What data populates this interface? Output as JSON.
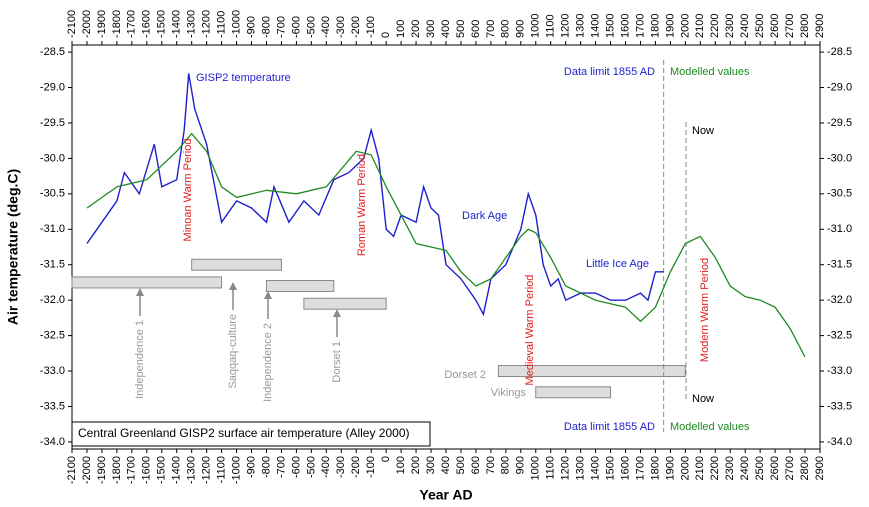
{
  "chart_data": {
    "type": "line",
    "title": "Central Greenland GISP2 surface air temperature (Alley 2000)",
    "x_label": "Year AD",
    "y_label": "Air temperature (deg.C)",
    "xlim": [
      -2100,
      2900
    ],
    "ylim": [
      -34.1,
      -28.4
    ],
    "xticks": [
      -2100,
      -2000,
      -1900,
      -1800,
      -1700,
      -1600,
      -1500,
      -1400,
      -1300,
      -1200,
      -1100,
      -1000,
      -900,
      -800,
      -700,
      -600,
      -500,
      -400,
      -300,
      -200,
      -100,
      0,
      100,
      200,
      300,
      400,
      500,
      600,
      700,
      800,
      900,
      1000,
      1100,
      1200,
      1300,
      1400,
      1500,
      1600,
      1700,
      1800,
      1900,
      2000,
      2100,
      2200,
      2300,
      2400,
      2500,
      2600,
      2700,
      2800,
      2900
    ],
    "yticks": [
      -28.5,
      {
        "value": -29,
        "label": "-29.0"
      },
      -29.5,
      {
        "value": -30,
        "label": "-30.0"
      },
      -30.5,
      {
        "value": -31,
        "label": "-31.0"
      },
      -31.5,
      {
        "value": -32,
        "label": "-32.0"
      },
      -32.5,
      {
        "value": -33,
        "label": "-33.0"
      },
      -33.5,
      {
        "value": -34,
        "label": "-34.0"
      }
    ],
    "series": [
      {
        "name": "GISP2 temperature",
        "color": "#1f1fcf",
        "x": [
          -2000,
          -1900,
          -1800,
          -1750,
          -1650,
          -1550,
          -1500,
          -1400,
          -1350,
          -1320,
          -1280,
          -1200,
          -1100,
          -1000,
          -900,
          -800,
          -750,
          -650,
          -550,
          -450,
          -350,
          -250,
          -150,
          -100,
          -50,
          0,
          50,
          100,
          200,
          250,
          300,
          350,
          400,
          500,
          600,
          650,
          700,
          800,
          900,
          950,
          1000,
          1050,
          1100,
          1150,
          1200,
          1300,
          1400,
          1500,
          1600,
          1700,
          1750,
          1800,
          1855
        ],
        "values": [
          -31.2,
          -30.9,
          -30.6,
          -30.2,
          -30.5,
          -29.8,
          -30.4,
          -30.3,
          -29.6,
          -28.8,
          -29.3,
          -29.8,
          -30.9,
          -30.6,
          -30.7,
          -30.9,
          -30.4,
          -30.9,
          -30.6,
          -30.8,
          -30.3,
          -30.2,
          -30.0,
          -29.6,
          -30.0,
          -31.0,
          -31.1,
          -30.8,
          -30.9,
          -30.4,
          -30.7,
          -30.8,
          -31.5,
          -31.7,
          -32.0,
          -32.2,
          -31.7,
          -31.5,
          -31.0,
          -30.5,
          -30.8,
          -31.5,
          -31.8,
          -31.7,
          -32.0,
          -31.9,
          -31.9,
          -32.0,
          -32.0,
          -31.9,
          -32.0,
          -31.6,
          -31.6
        ]
      },
      {
        "name": "Modelled values",
        "color": "#1f8a1f",
        "x": [
          -2000,
          -1800,
          -1600,
          -1400,
          -1300,
          -1200,
          -1100,
          -1000,
          -800,
          -600,
          -400,
          -200,
          -100,
          0,
          100,
          200,
          300,
          400,
          500,
          600,
          700,
          800,
          900,
          950,
          1000,
          1100,
          1200,
          1300,
          1400,
          1600,
          1700,
          1800,
          1900,
          2000,
          2100,
          2200,
          2300,
          2400,
          2500,
          2600,
          2700,
          2800
        ],
        "values": [
          -30.7,
          -30.4,
          -30.3,
          -29.9,
          -29.65,
          -29.9,
          -30.4,
          -30.55,
          -30.45,
          -30.5,
          -30.4,
          -29.9,
          -29.95,
          -30.4,
          -30.8,
          -31.2,
          -31.25,
          -31.3,
          -31.6,
          -31.8,
          -31.7,
          -31.4,
          -31.1,
          -31.0,
          -31.05,
          -31.4,
          -31.8,
          -31.9,
          -32.0,
          -32.1,
          -32.3,
          -32.1,
          -31.6,
          -31.2,
          -31.1,
          -31.4,
          -31.8,
          -31.95,
          -32.0,
          -32.1,
          -32.4,
          -32.8
        ]
      }
    ],
    "bars": [
      {
        "start": -2100,
        "end": -1100,
        "y": -31.75
      },
      {
        "start": -1300,
        "end": -700,
        "y": -31.5
      },
      {
        "start": -800,
        "end": -350,
        "y": -31.8
      },
      {
        "start": -550,
        "end": 0,
        "y": -32.05
      },
      {
        "start": 750,
        "end": 2000,
        "y": -33.0
      },
      {
        "start": 1000,
        "end": 1500,
        "y": -33.3
      }
    ],
    "annotations": [
      "GISP2 temperature",
      "Dark Age",
      "Little Ice Age",
      "Data limit 1855 AD",
      "Modelled values",
      "Now",
      "Data limit 1855 AD",
      "Modelled values",
      "Now",
      "Dorset 2",
      "Vikings"
    ],
    "periods": [
      "Minoan Warm Period",
      "Roman Warm Period",
      "Medieval Warm Period",
      "Modern Warm Period"
    ],
    "cultures": [
      "Independence 1",
      "Saqqaq-culture",
      "Independence 2",
      "Dorset 1"
    ]
  }
}
